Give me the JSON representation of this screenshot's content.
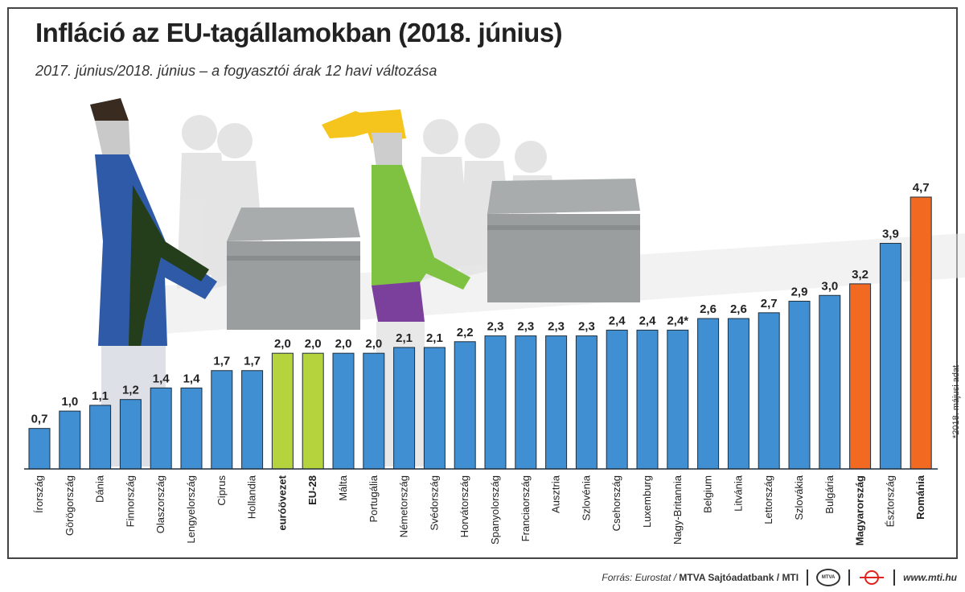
{
  "title": "Infláció az EU-tagállamokban (2018. június)",
  "subtitle": "2017. június/2018. június – a fogyasztói árak 12 havi változása",
  "footnote": "*2018. májusi adat",
  "footer": {
    "source_prefix": "Forrás: Eurostat /",
    "source_bold": "MTVA Sajtóadatbank / MTI",
    "mtva_logo_text": "MTVA",
    "website": "www.mti.hu"
  },
  "chart_data": {
    "type": "bar",
    "title": "Infláció az EU-tagállamokban (2018. június)",
    "subtitle": "2017. június/2018. június – a fogyasztói árak 12 havi változása",
    "categories": [
      "Írország",
      "Görögország",
      "Dánia",
      "Finnország",
      "Olaszország",
      "Lengyelország",
      "Ciprus",
      "Hollandia",
      "euróövezet",
      "EU-28",
      "Málta",
      "Portugália",
      "Németország",
      "Svédország",
      "Horvátország",
      "Spanyolország",
      "Franciaország",
      "Ausztria",
      "Szlovénia",
      "Csehország",
      "Luxemburg",
      "Nagy-Britannia",
      "Belgium",
      "Litvánia",
      "Lettország",
      "Szlovákia",
      "Bulgária",
      "Magyarország",
      "Észtország",
      "Románia"
    ],
    "values": [
      0.7,
      1.0,
      1.1,
      1.2,
      1.4,
      1.4,
      1.7,
      1.7,
      2.0,
      2.0,
      2.0,
      2.0,
      2.1,
      2.1,
      2.2,
      2.3,
      2.3,
      2.3,
      2.3,
      2.4,
      2.4,
      2.4,
      2.6,
      2.6,
      2.7,
      2.9,
      3.0,
      3.2,
      3.9,
      4.7
    ],
    "value_labels": [
      "0,7",
      "1,0",
      "1,1",
      "1,2",
      "1,4",
      "1,4",
      "1,7",
      "1,7",
      "2,0",
      "2,0",
      "2,0",
      "2,0",
      "2,1",
      "2,1",
      "2,2",
      "2,3",
      "2,3",
      "2,3",
      "2,3",
      "2,4",
      "2,4",
      "2,4*",
      "2,6",
      "2,6",
      "2,7",
      "2,9",
      "3,0",
      "3,2",
      "3,9",
      "4,7"
    ],
    "highlight": {
      "euróövezet": "green",
      "EU-28": "green",
      "Magyarország": "orange",
      "Románia": "orange"
    },
    "bold_categories": [
      "euróövezet",
      "EU-28",
      "Magyarország",
      "Románia"
    ],
    "colors": {
      "default": "#3f8fd2",
      "green": "#b5d33d",
      "orange": "#f26a21",
      "border": "#1f2d3a"
    },
    "ylim": [
      0,
      4.7
    ],
    "grid": false,
    "legend": "none"
  }
}
